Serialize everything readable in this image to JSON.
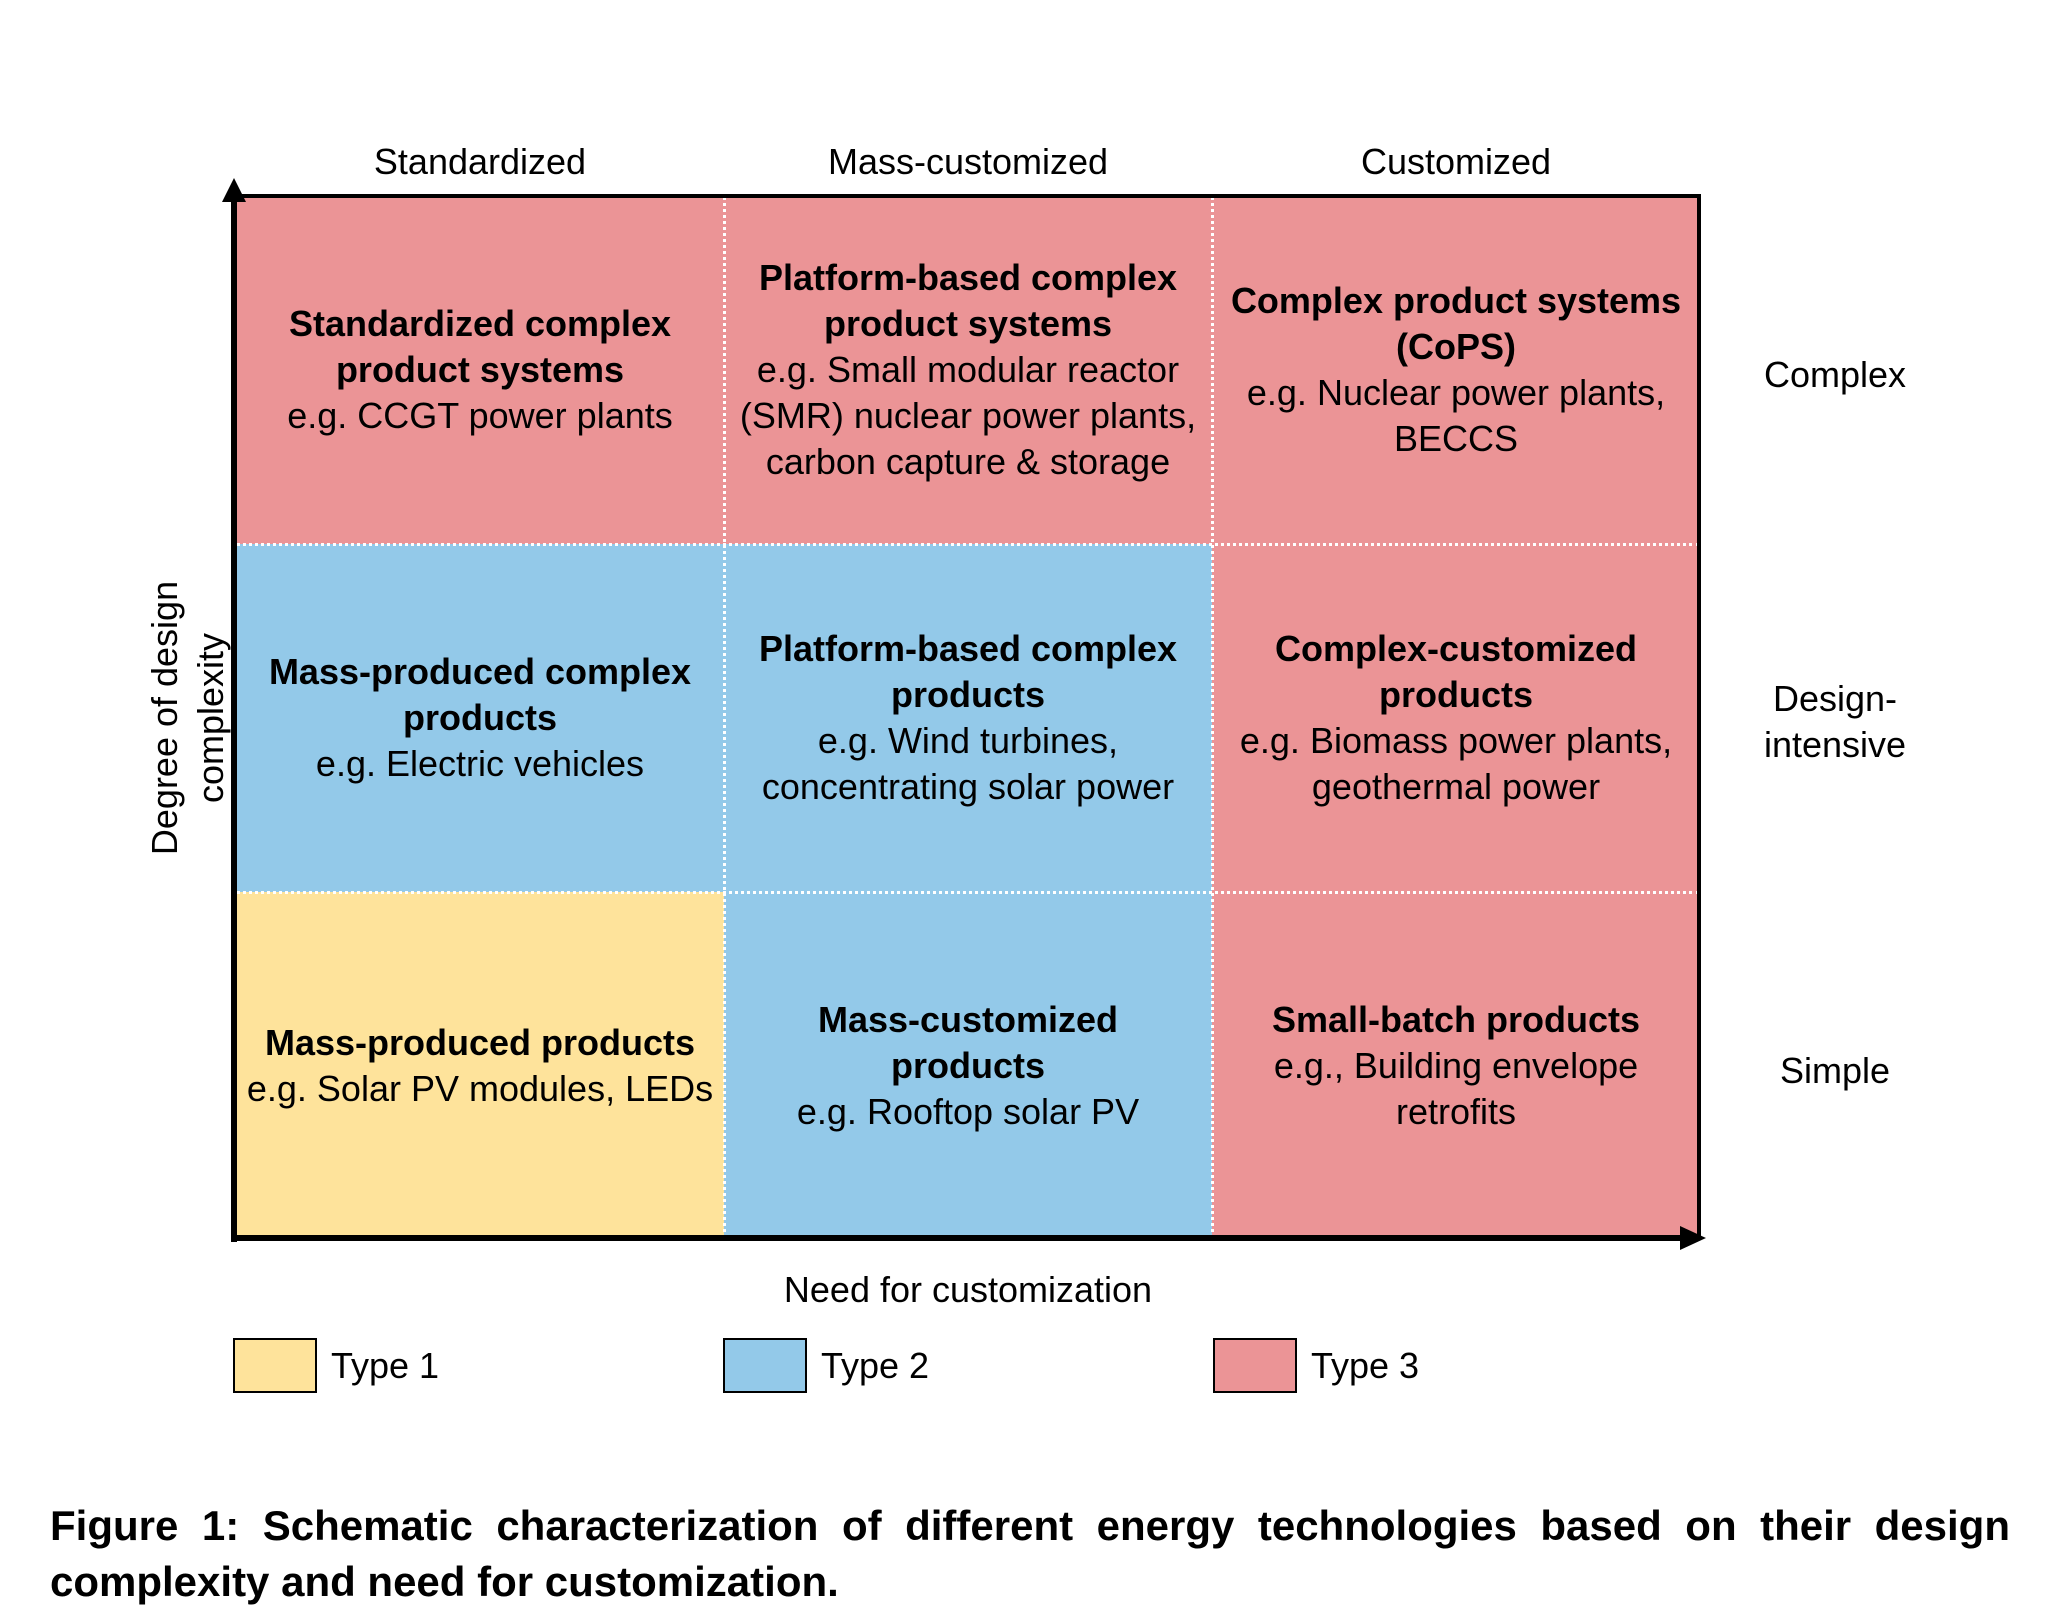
{
  "columns": [
    "Standardized",
    "Mass-customized",
    "Customized"
  ],
  "rows": [
    "Complex",
    "Design-\nintensive",
    "Simple"
  ],
  "cells": [
    [
      {
        "title": "Standardized complex\nproduct systems",
        "example": "e.g. CCGT power plants",
        "type": 3
      },
      {
        "title": "Platform-based complex\nproduct systems",
        "example": "e.g. Small modular reactor\n(SMR) nuclear power plants,\ncarbon capture & storage",
        "type": 3
      },
      {
        "title": "Complex product systems\n(CoPS)",
        "example": "e.g. Nuclear power plants,\nBECCS",
        "type": 3
      }
    ],
    [
      {
        "title": "Mass-produced complex\nproducts",
        "example": "e.g. Electric vehicles",
        "type": 2
      },
      {
        "title": "Platform-based complex\nproducts",
        "example": "e.g. Wind turbines,\nconcentrating solar power",
        "type": 2
      },
      {
        "title": "Complex-customized\nproducts",
        "example": "e.g. Biomass power plants,\ngeothermal power",
        "type": 3
      }
    ],
    [
      {
        "title": "Mass-produced products",
        "example": "e.g. Solar PV modules, LEDs",
        "type": 1
      },
      {
        "title": "Mass-customized\nproducts",
        "example": "e.g. Rooftop solar PV",
        "type": 2
      },
      {
        "title": "Small-batch products",
        "example": "e.g., Building envelope\nretrofits",
        "type": 3
      }
    ]
  ],
  "axes": {
    "y_label": "Degree of design\ncomplexity",
    "x_label": "Need for customization"
  },
  "legend": [
    {
      "label": "Type 1",
      "color": "#fee39b"
    },
    {
      "label": "Type 2",
      "color": "#93c9e9"
    },
    {
      "label": "Type 3",
      "color": "#eb9496"
    }
  ],
  "caption": "Figure 1: Schematic characterization of different energy technologies based on their design complexity and need for customization."
}
